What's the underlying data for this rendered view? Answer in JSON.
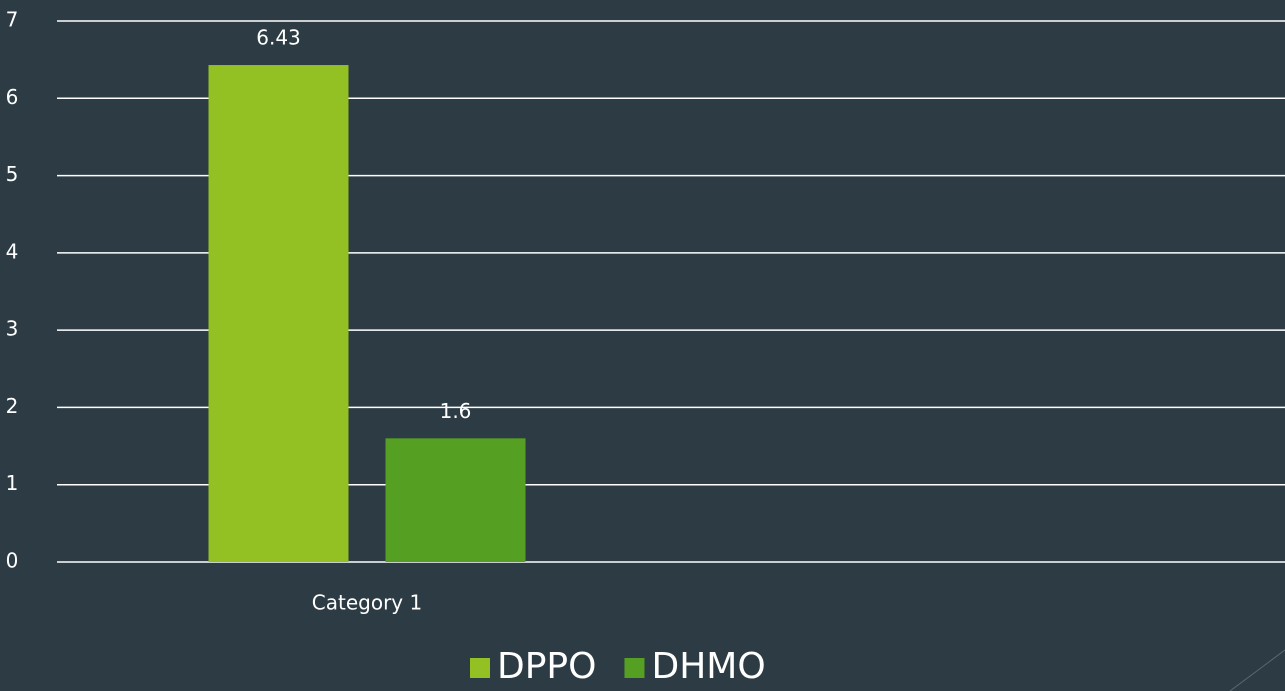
{
  "chart_data": {
    "type": "bar",
    "categories": [
      "Category 1"
    ],
    "series": [
      {
        "name": "DPPO",
        "color": "#93c022",
        "values": [
          6.43
        ]
      },
      {
        "name": "DHMO",
        "color": "#55a023",
        "values": [
          1.6
        ]
      }
    ],
    "ylim": [
      0,
      7
    ],
    "yticks": [
      0,
      1,
      2,
      3,
      4,
      5,
      6,
      7
    ],
    "grid": true,
    "legend": "bottom"
  }
}
